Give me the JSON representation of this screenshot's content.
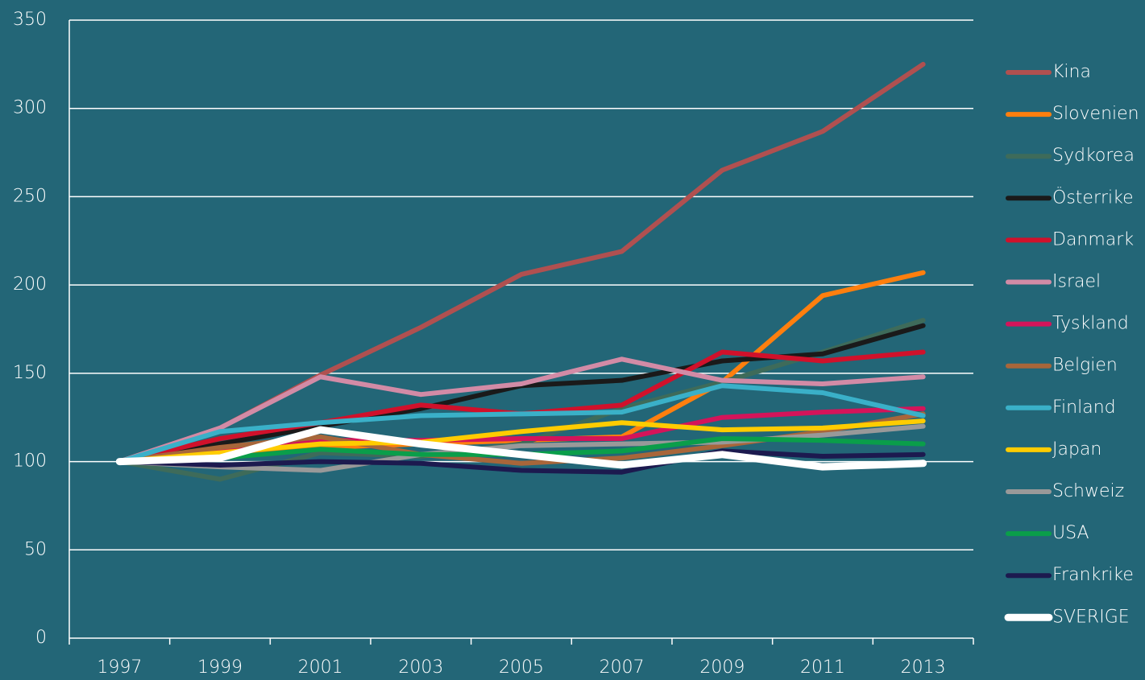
{
  "chart_data": {
    "type": "line",
    "categories": [
      "1997",
      "1999",
      "2001",
      "2003",
      "2005",
      "2007",
      "2009",
      "2011",
      "2013"
    ],
    "ylim": [
      0,
      350
    ],
    "yticks": [
      0,
      50,
      100,
      150,
      200,
      250,
      300,
      350
    ],
    "grid": true,
    "legend": "right",
    "series": [
      {
        "name": "Kina",
        "color": "#b05050",
        "values": [
          100,
          119,
          149,
          176,
          206,
          219,
          265,
          287,
          325
        ]
      },
      {
        "name": "Slovenien",
        "color": "#ff7f0e",
        "values": [
          100,
          104,
          108,
          110,
          112,
          114,
          145,
          194,
          207
        ]
      },
      {
        "name": "Sydkorea",
        "color": "#3e6b5a",
        "values": [
          100,
          90,
          105,
          103,
          110,
          130,
          145,
          162,
          180
        ]
      },
      {
        "name": "Österrike",
        "color": "#1a1a1a",
        "values": [
          100,
          110,
          120,
          130,
          143,
          146,
          157,
          161,
          177
        ]
      },
      {
        "name": "Danmark",
        "color": "#d0112b",
        "values": [
          100,
          113,
          122,
          132,
          127,
          132,
          162,
          157,
          162
        ]
      },
      {
        "name": "Israel",
        "color": "#d28ba6",
        "values": [
          100,
          119,
          148,
          138,
          144,
          158,
          146,
          144,
          148
        ]
      },
      {
        "name": "Tyskland",
        "color": "#d4145a",
        "values": [
          100,
          107,
          112,
          112,
          113,
          113,
          125,
          128,
          130
        ]
      },
      {
        "name": "Belgien",
        "color": "#a8663a",
        "values": [
          100,
          108,
          114,
          104,
          99,
          102,
          109,
          117,
          127
        ]
      },
      {
        "name": "Finland",
        "color": "#3ab0c8",
        "values": [
          100,
          117,
          122,
          126,
          127,
          128,
          143,
          139,
          126
        ]
      },
      {
        "name": "Japan",
        "color": "#ffcc00",
        "values": [
          100,
          105,
          110,
          111,
          117,
          122,
          118,
          119,
          123
        ]
      },
      {
        "name": "Schweiz",
        "color": "#999999",
        "values": [
          100,
          97,
          95,
          104,
          109,
          110,
          111,
          115,
          120
        ]
      },
      {
        "name": "USA",
        "color": "#0a9e4a",
        "values": [
          100,
          102,
          107,
          104,
          104,
          106,
          113,
          112,
          110
        ]
      },
      {
        "name": "Frankrike",
        "color": "#1c1a4f",
        "values": [
          100,
          98,
          100,
          99,
          95,
          94,
          106,
          103,
          104
        ]
      },
      {
        "name": "SVERIGE",
        "color": "#ffffff",
        "values": [
          100,
          102,
          118,
          110,
          104,
          98,
          104,
          97,
          99
        ]
      }
    ]
  }
}
